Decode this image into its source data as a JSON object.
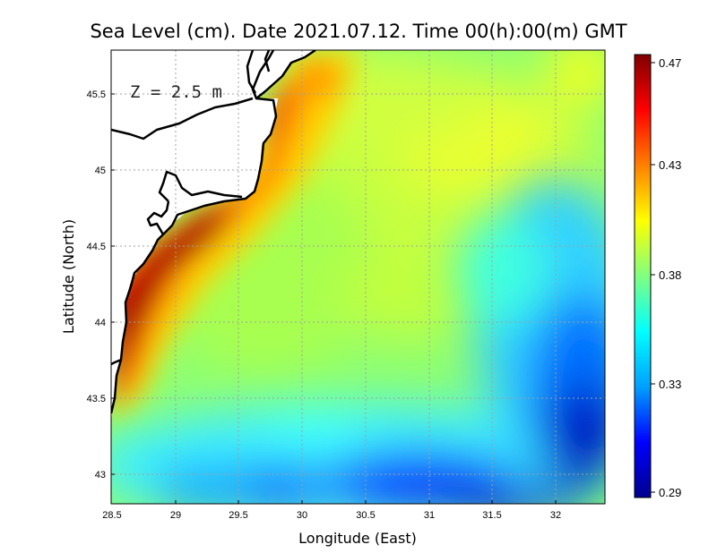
{
  "title": "Sea Level (cm). Date 2021.07.12. Time 00(h):00(m) GMT",
  "depth_label": "Z = 2.5 m",
  "x_axis_label": "Longitude (East)",
  "y_axis_label": "Latitude (North)",
  "x_ticks": [
    "28.5",
    "29",
    "29.5",
    "30",
    "30.5",
    "31",
    "31.5",
    "32"
  ],
  "y_ticks": [
    "43",
    "43.5",
    "44",
    "44.5",
    "45",
    "45.5"
  ],
  "colorbar_ticks": [
    "0.47",
    "0.43",
    "0.38",
    "0.33",
    "0.29"
  ],
  "colors": {
    "colorbar_stops": [
      "#00008f",
      "#0000ff",
      "#00a0ff",
      "#00ffff",
      "#80ff80",
      "#ffff00",
      "#ff8000",
      "#ff0000",
      "#800000"
    ],
    "coastline": "#000000",
    "land": "#ffffff",
    "grid": "#a0a0a0"
  },
  "chart_data": {
    "type": "heatmap",
    "variable": "Sea Level (cm)",
    "x_range": [
      28.5,
      32.4
    ],
    "y_range": [
      42.8,
      45.8
    ],
    "color_range": [
      0.29,
      0.47
    ],
    "grid": true,
    "legend": "colorbar right",
    "x_tick_values": [
      28.5,
      29,
      29.5,
      30,
      30.5,
      31,
      31.5,
      32
    ],
    "y_tick_values": [
      43,
      43.5,
      44,
      44.5,
      45,
      45.5
    ],
    "colorbar_tick_values": [
      0.47,
      0.43,
      0.38,
      0.33,
      0.29
    ]
  }
}
